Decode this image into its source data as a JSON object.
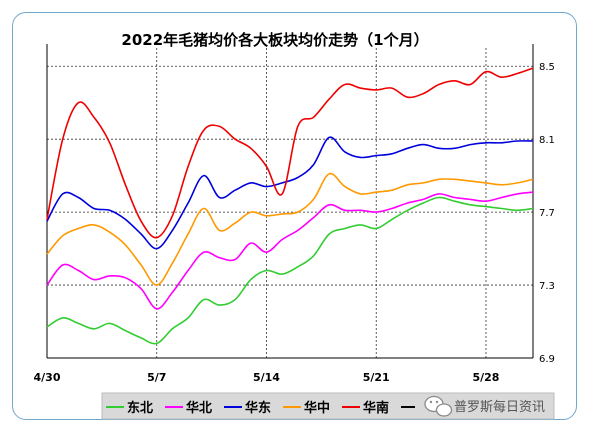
{
  "chart_data": {
    "type": "line",
    "title": "2022年毛猪均价各大板块均价走势（1个月）",
    "xlabel": "",
    "ylabel": "",
    "x": [
      "4/30",
      "5/1",
      "5/2",
      "5/3",
      "5/4",
      "5/5",
      "5/6",
      "5/7",
      "5/8",
      "5/9",
      "5/10",
      "5/11",
      "5/12",
      "5/13",
      "5/14",
      "5/15",
      "5/16",
      "5/17",
      "5/18",
      "5/19",
      "5/20",
      "5/21",
      "5/22",
      "5/23",
      "5/24",
      "5/25",
      "5/26",
      "5/27",
      "5/28",
      "5/29",
      "5/30",
      "5/31"
    ],
    "x_ticks": [
      "4/30",
      "5/7",
      "5/14",
      "5/21",
      "5/28"
    ],
    "y_ticks": [
      "6.9",
      "7.3",
      "7.7",
      "8.1",
      "8.5"
    ],
    "ylim": [
      6.9,
      8.6
    ],
    "grid": "dotted",
    "legend_position": "bottom",
    "series": [
      {
        "name": "东北",
        "color": "#33cc33",
        "values": [
          7.07,
          7.12,
          7.09,
          7.06,
          7.09,
          7.05,
          7.01,
          6.98,
          7.06,
          7.12,
          7.22,
          7.19,
          7.22,
          7.33,
          7.38,
          7.36,
          7.4,
          7.46,
          7.58,
          7.61,
          7.63,
          7.61,
          7.66,
          7.71,
          7.75,
          7.78,
          7.76,
          7.74,
          7.73,
          7.72,
          7.71,
          7.72
        ]
      },
      {
        "name": "华北",
        "color": "#ff00ff",
        "values": [
          7.3,
          7.41,
          7.38,
          7.33,
          7.35,
          7.34,
          7.28,
          7.17,
          7.26,
          7.38,
          7.48,
          7.45,
          7.44,
          7.53,
          7.48,
          7.55,
          7.6,
          7.67,
          7.74,
          7.71,
          7.71,
          7.7,
          7.72,
          7.75,
          7.77,
          7.8,
          7.78,
          7.77,
          7.76,
          7.78,
          7.8,
          7.81
        ]
      },
      {
        "name": "华东",
        "color": "#0000dd",
        "values": [
          7.65,
          7.8,
          7.78,
          7.72,
          7.71,
          7.66,
          7.58,
          7.5,
          7.6,
          7.75,
          7.9,
          7.78,
          7.82,
          7.86,
          7.84,
          7.86,
          7.89,
          7.96,
          8.11,
          8.03,
          8.0,
          8.01,
          8.02,
          8.05,
          8.07,
          8.05,
          8.05,
          8.07,
          8.08,
          8.08,
          8.09,
          8.09
        ]
      },
      {
        "name": "华中",
        "color": "#ff9900",
        "values": [
          7.47,
          7.57,
          7.61,
          7.63,
          7.59,
          7.52,
          7.41,
          7.3,
          7.42,
          7.58,
          7.72,
          7.6,
          7.64,
          7.7,
          7.68,
          7.69,
          7.7,
          7.77,
          7.91,
          7.84,
          7.8,
          7.81,
          7.82,
          7.85,
          7.86,
          7.88,
          7.88,
          7.87,
          7.86,
          7.85,
          7.86,
          7.88
        ]
      },
      {
        "name": "华南",
        "color": "#ee0000",
        "values": [
          7.66,
          8.1,
          8.3,
          8.22,
          8.08,
          7.85,
          7.65,
          7.56,
          7.68,
          7.95,
          8.15,
          8.17,
          8.1,
          8.05,
          7.95,
          7.8,
          8.17,
          8.22,
          8.32,
          8.4,
          8.38,
          8.37,
          8.38,
          8.33,
          8.35,
          8.4,
          8.42,
          8.4,
          8.47,
          8.44,
          8.46,
          8.49
        ]
      }
    ]
  },
  "watermark": {
    "icon": "wechat-icon",
    "text": "普罗斯每日资讯"
  }
}
